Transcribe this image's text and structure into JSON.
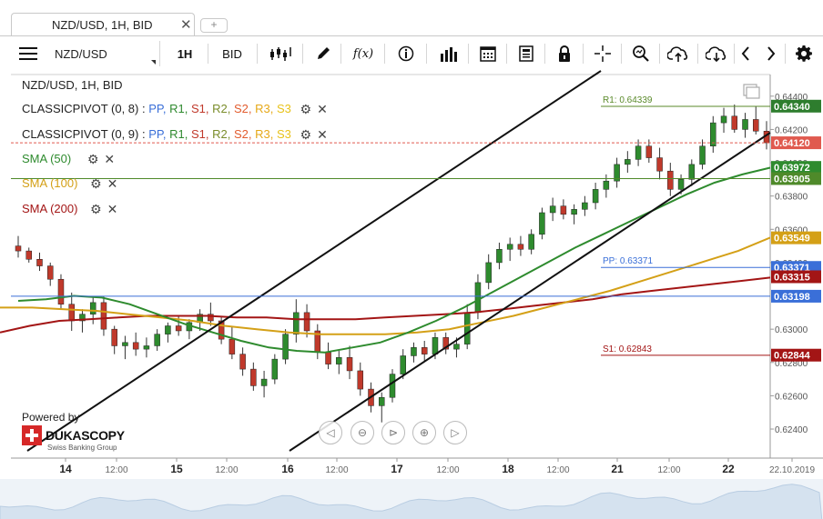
{
  "tab": {
    "title": "NZD/USD, 1H, BID",
    "close": "✕",
    "add": "+"
  },
  "toolbar": {
    "symbol": "NZD/USD",
    "timeframe": "1H",
    "side": "BID",
    "fx_label": "f(x)"
  },
  "legend": {
    "title": "NZD/USD, 1H, BID",
    "pivots": [
      {
        "label": "CLASSICPIVOT (0, 8)",
        "sep": " : ",
        "items": [
          "PP,",
          "R1,",
          "S1,",
          "R2,",
          "S2,",
          "R3,",
          "S3"
        ]
      },
      {
        "label": "CLASSICPIVOT (0, 9)",
        "sep": " : ",
        "items": [
          "PP,",
          "R1,",
          "S1,",
          "R2,",
          "S2,",
          "R3,",
          "S3"
        ]
      }
    ],
    "sma": [
      {
        "label": "SMA (50)",
        "color": "#2e8b2e"
      },
      {
        "label": "SMA (100)",
        "color": "#d4a017"
      },
      {
        "label": "SMA (200)",
        "color": "#a31515"
      }
    ]
  },
  "branding": {
    "powered_by": "Powered by",
    "brand": "DUKASCOPY",
    "tagline": "Swiss Banking Group"
  },
  "chart_data": {
    "type": "candlestick",
    "title": "NZD/USD, 1H, BID",
    "x_ticks": [
      "14",
      "12:00",
      "15",
      "12:00",
      "16",
      "12:00",
      "17",
      "12:00",
      "18",
      "12:00",
      "21",
      "12:00",
      "22",
      "22.10.2019"
    ],
    "y_ticks": [
      "0.64400",
      "0.64200",
      "0.64000",
      "0.63800",
      "0.63600",
      "0.63400",
      "0.63000",
      "0.62800",
      "0.62600",
      "0.62400"
    ],
    "ylim": [
      0.6228,
      0.6453
    ],
    "price_labels": [
      {
        "value": "0.64340",
        "color": "#2e7d2e"
      },
      {
        "value": "0.64120",
        "color": "#e05a4f"
      },
      {
        "value": "0.63972",
        "color": "#2e8b2e"
      },
      {
        "value": "0.63905",
        "color": "#4f8a2a"
      },
      {
        "value": "0.63549",
        "color": "#d4a017"
      },
      {
        "value": "0.63371",
        "color": "#3a6fd8"
      },
      {
        "value": "0.63315",
        "color": "#a31515"
      },
      {
        "value": "0.63198",
        "color": "#3a6fd8"
      },
      {
        "value": "0.62844",
        "color": "#a31515"
      }
    ],
    "horizontal_lines": [
      {
        "name": "R1",
        "label": "R1: 0.64339",
        "value": 0.64339,
        "color": "#5a8a2a"
      },
      {
        "name": "PP",
        "label": "PP: 0.63371",
        "value": 0.63371,
        "color": "#3a6fd8"
      },
      {
        "name": "S1",
        "label": "S1: 0.62843",
        "value": 0.62843,
        "color": "#a31515"
      },
      {
        "name": "level-0.63905",
        "label": "",
        "value": 0.63905,
        "color": "#4f8a2a"
      },
      {
        "name": "level-0.63198",
        "label": "",
        "value": 0.63198,
        "color": "#3a6fd8"
      },
      {
        "name": "current-0.64120",
        "label": "",
        "value": 0.6412,
        "color": "#e05a4f",
        "dashed": true
      }
    ],
    "candles": [
      [
        0.635,
        0.6356,
        0.6343,
        0.6347
      ],
      [
        0.6347,
        0.6349,
        0.634,
        0.6342
      ],
      [
        0.6342,
        0.6346,
        0.6335,
        0.6338
      ],
      [
        0.6338,
        0.634,
        0.6326,
        0.633
      ],
      [
        0.633,
        0.6333,
        0.6312,
        0.6315
      ],
      [
        0.6315,
        0.6322,
        0.6299,
        0.6305
      ],
      [
        0.6305,
        0.6312,
        0.6298,
        0.6309
      ],
      [
        0.6309,
        0.632,
        0.6303,
        0.6316
      ],
      [
        0.6316,
        0.632,
        0.6296,
        0.63
      ],
      [
        0.63,
        0.6302,
        0.6285,
        0.629
      ],
      [
        0.629,
        0.6296,
        0.6282,
        0.6292
      ],
      [
        0.6292,
        0.6298,
        0.6284,
        0.6288
      ],
      [
        0.6288,
        0.6295,
        0.6283,
        0.629
      ],
      [
        0.629,
        0.63,
        0.6287,
        0.6297
      ],
      [
        0.6297,
        0.6304,
        0.6292,
        0.6302
      ],
      [
        0.6302,
        0.6308,
        0.6296,
        0.6299
      ],
      [
        0.6299,
        0.6306,
        0.6294,
        0.6304
      ],
      [
        0.6304,
        0.6312,
        0.6299,
        0.6309
      ],
      [
        0.6309,
        0.6316,
        0.6302,
        0.6305
      ],
      [
        0.6305,
        0.6308,
        0.6291,
        0.6294
      ],
      [
        0.6294,
        0.6302,
        0.6282,
        0.6285
      ],
      [
        0.6285,
        0.6289,
        0.6272,
        0.6276
      ],
      [
        0.6276,
        0.628,
        0.6263,
        0.6266
      ],
      [
        0.6266,
        0.6275,
        0.6259,
        0.627
      ],
      [
        0.627,
        0.6285,
        0.6267,
        0.6282
      ],
      [
        0.6282,
        0.63,
        0.6279,
        0.6297
      ],
      [
        0.6297,
        0.6318,
        0.6292,
        0.631
      ],
      [
        0.631,
        0.6315,
        0.6295,
        0.6299
      ],
      [
        0.6299,
        0.6303,
        0.6282,
        0.6286
      ],
      [
        0.6286,
        0.6292,
        0.6276,
        0.6279
      ],
      [
        0.6279,
        0.6287,
        0.6273,
        0.6283
      ],
      [
        0.6283,
        0.629,
        0.627,
        0.6275
      ],
      [
        0.6275,
        0.628,
        0.626,
        0.6264
      ],
      [
        0.6264,
        0.6268,
        0.625,
        0.6254
      ],
      [
        0.6254,
        0.6262,
        0.6244,
        0.6259
      ],
      [
        0.6259,
        0.6276,
        0.6256,
        0.6273
      ],
      [
        0.6273,
        0.6288,
        0.627,
        0.6284
      ],
      [
        0.6284,
        0.6292,
        0.628,
        0.6289
      ],
      [
        0.6289,
        0.6293,
        0.6281,
        0.6285
      ],
      [
        0.6285,
        0.6298,
        0.6282,
        0.6295
      ],
      [
        0.6295,
        0.6298,
        0.6285,
        0.6288
      ],
      [
        0.6288,
        0.6295,
        0.6283,
        0.6291
      ],
      [
        0.6291,
        0.6315,
        0.6288,
        0.631
      ],
      [
        0.631,
        0.6333,
        0.6306,
        0.6328
      ],
      [
        0.6328,
        0.6345,
        0.6324,
        0.634
      ],
      [
        0.634,
        0.6352,
        0.6336,
        0.6348
      ],
      [
        0.6348,
        0.6355,
        0.6341,
        0.6351
      ],
      [
        0.6351,
        0.6356,
        0.6344,
        0.6348
      ],
      [
        0.6348,
        0.636,
        0.6345,
        0.6357
      ],
      [
        0.6357,
        0.6373,
        0.6354,
        0.637
      ],
      [
        0.637,
        0.6379,
        0.6365,
        0.6374
      ],
      [
        0.6374,
        0.6378,
        0.6366,
        0.6369
      ],
      [
        0.6369,
        0.6375,
        0.6363,
        0.6372
      ],
      [
        0.6372,
        0.638,
        0.6368,
        0.6376
      ],
      [
        0.6376,
        0.6388,
        0.6372,
        0.6384
      ],
      [
        0.6384,
        0.6393,
        0.6379,
        0.6389
      ],
      [
        0.6389,
        0.6403,
        0.6385,
        0.6399
      ],
      [
        0.6399,
        0.6407,
        0.6394,
        0.6402
      ],
      [
        0.6402,
        0.6414,
        0.6398,
        0.641
      ],
      [
        0.641,
        0.6414,
        0.64,
        0.6403
      ],
      [
        0.6403,
        0.6409,
        0.639,
        0.6395
      ],
      [
        0.6395,
        0.64,
        0.638,
        0.6384
      ],
      [
        0.6384,
        0.6393,
        0.6381,
        0.639
      ],
      [
        0.639,
        0.6402,
        0.6386,
        0.6399
      ],
      [
        0.6399,
        0.6414,
        0.6396,
        0.641
      ],
      [
        0.641,
        0.6428,
        0.6406,
        0.6424
      ],
      [
        0.6424,
        0.6433,
        0.6418,
        0.6428
      ],
      [
        0.6428,
        0.6435,
        0.6418,
        0.642
      ],
      [
        0.642,
        0.643,
        0.6415,
        0.6426
      ],
      [
        0.6426,
        0.6434,
        0.6417,
        0.6419
      ],
      [
        0.6419,
        0.6425,
        0.6408,
        0.6412
      ]
    ],
    "sma50": [
      0.6317,
      0.6318,
      0.632,
      0.6319,
      0.6315,
      0.6309,
      0.6303,
      0.6298,
      0.6293,
      0.6289,
      0.6287,
      0.6286,
      0.6289,
      0.6292,
      0.6298,
      0.6305,
      0.6313,
      0.6322,
      0.6331,
      0.634,
      0.6349,
      0.6357,
      0.6365,
      0.6373,
      0.6381,
      0.6388,
      0.6393,
      0.6397
    ],
    "sma100": [
      0.6313,
      0.6313,
      0.6312,
      0.6311,
      0.6309,
      0.6307,
      0.6305,
      0.6302,
      0.63,
      0.6298,
      0.6297,
      0.6297,
      0.6297,
      0.6298,
      0.63,
      0.6304,
      0.6308,
      0.6313,
      0.6318,
      0.6323,
      0.6329,
      0.6335,
      0.6341,
      0.6347,
      0.6355
    ],
    "sma200": [
      0.6298,
      0.6302,
      0.6305,
      0.6306,
      0.6307,
      0.6308,
      0.6308,
      0.6308,
      0.6307,
      0.6307,
      0.6306,
      0.6306,
      0.6306,
      0.6307,
      0.6308,
      0.6309,
      0.631,
      0.6312,
      0.6314,
      0.6316,
      0.6318,
      0.6321,
      0.6323,
      0.6325,
      0.6327,
      0.6329,
      0.6331
    ]
  }
}
